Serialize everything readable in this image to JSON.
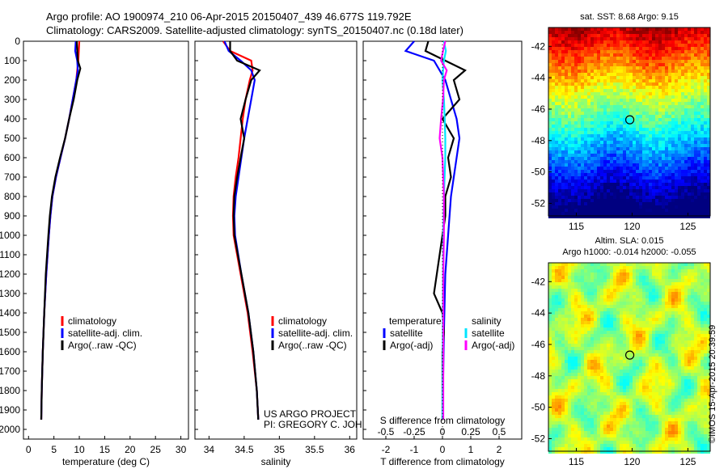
{
  "header": {
    "line1": "Argo profile: AO 1900974_210 06-Apr-2015 20150407_439 46.677S 119.792E",
    "line2": "Climatology: CARS2009. Satellite-adjusted climatology: synTS_20150407.nc (0.18d later)"
  },
  "credit": "©IMOS 15-Apr-2015 20:39:59",
  "depth_ticks": [
    0,
    100,
    200,
    300,
    400,
    500,
    600,
    700,
    800,
    900,
    1000,
    1100,
    1200,
    1300,
    1400,
    1500,
    1600,
    1700,
    1800,
    1900,
    2000
  ],
  "project_note": {
    "line1": "US ARGO PROJECT",
    "line2": "PI: GREGORY C. JOHNSON"
  },
  "colors": {
    "climatology": "#ff0000",
    "satellite": "#0000ff",
    "argo": "#000000",
    "sal_satellite": "#00e5ff",
    "sal_argo": "#ff00ff"
  },
  "chart_data": [
    {
      "type": "line",
      "id": "temperature",
      "xlabel": "temperature (deg C)",
      "xlim": [
        -1,
        31.5
      ],
      "ylim": [
        2050,
        0
      ],
      "xticks": [
        0,
        5,
        10,
        15,
        20,
        25,
        30
      ],
      "legend": [
        "climatology",
        "satellite-adj. clim.",
        "Argo(..raw -QC)"
      ],
      "series": [
        {
          "name": "climatology",
          "color": "#ff0000",
          "depth": [
            0,
            50,
            100,
            150,
            200,
            300,
            400,
            500,
            600,
            700,
            800,
            900,
            1000,
            1200,
            1400,
            1600,
            1800,
            1950
          ],
          "values": [
            10.0,
            9.9,
            9.8,
            9.6,
            9.4,
            8.7,
            8.0,
            7.2,
            6.3,
            5.4,
            4.7,
            4.3,
            4.0,
            3.5,
            3.1,
            2.8,
            2.6,
            2.5
          ]
        },
        {
          "name": "satellite-adj. clim.",
          "color": "#0000ff",
          "depth": [
            0,
            50,
            100,
            150,
            200,
            300,
            400,
            500,
            600,
            700,
            800,
            900,
            1000,
            1200,
            1400,
            1600,
            1800,
            1950
          ],
          "values": [
            9.3,
            9.2,
            9.6,
            9.7,
            9.4,
            8.7,
            8.0,
            7.2,
            6.3,
            5.4,
            4.7,
            4.3,
            4.0,
            3.5,
            3.1,
            2.8,
            2.6,
            2.5
          ]
        },
        {
          "name": "Argo(..raw -QC)",
          "color": "#000000",
          "depth": [
            0,
            50,
            100,
            140,
            200,
            300,
            400,
            500,
            600,
            700,
            800,
            900,
            1000,
            1200,
            1400,
            1600,
            1800,
            1950
          ],
          "values": [
            9.5,
            9.6,
            9.7,
            10.2,
            9.6,
            8.9,
            8.0,
            7.2,
            6.2,
            5.3,
            4.6,
            4.2,
            3.9,
            3.4,
            3.1,
            2.8,
            2.6,
            2.5
          ]
        }
      ]
    },
    {
      "type": "line",
      "id": "salinity",
      "xlabel": "salinity",
      "xlim": [
        33.8,
        36.1
      ],
      "ylim": [
        2050,
        0
      ],
      "xticks": [
        34,
        34.5,
        35,
        35.5,
        36
      ],
      "legend": [
        "climatology",
        "satellite-adj. clim.",
        "Argo(..raw -QC)"
      ],
      "series": [
        {
          "name": "climatology",
          "color": "#ff0000",
          "depth": [
            0,
            50,
            100,
            150,
            200,
            300,
            400,
            500,
            600,
            700,
            800,
            900,
            1000,
            1200,
            1400,
            1600,
            1800,
            1950
          ],
          "values": [
            34.2,
            34.3,
            34.6,
            34.62,
            34.58,
            34.52,
            34.48,
            34.45,
            34.42,
            34.38,
            34.35,
            34.34,
            34.35,
            34.45,
            34.55,
            34.62,
            34.68,
            34.7
          ]
        },
        {
          "name": "satellite-adj. clim.",
          "color": "#0000ff",
          "depth": [
            0,
            50,
            100,
            150,
            200,
            300,
            400,
            500,
            600,
            700,
            800,
            900,
            1000,
            1200,
            1400,
            1600,
            1800,
            1950
          ],
          "values": [
            34.22,
            34.28,
            34.45,
            34.6,
            34.65,
            34.6,
            34.55,
            34.5,
            34.46,
            34.42,
            34.38,
            34.36,
            34.37,
            34.46,
            34.56,
            34.63,
            34.68,
            34.7
          ]
        },
        {
          "name": "Argo(..raw -QC)",
          "color": "#000000",
          "depth": [
            0,
            50,
            100,
            150,
            200,
            300,
            400,
            500,
            600,
            700,
            800,
            900,
            1000,
            1200,
            1400,
            1600,
            1800,
            1950
          ],
          "values": [
            34.3,
            34.3,
            34.4,
            34.72,
            34.6,
            34.52,
            34.45,
            34.5,
            34.45,
            34.4,
            34.36,
            34.35,
            34.36,
            34.46,
            34.56,
            34.63,
            34.68,
            34.7
          ]
        }
      ]
    },
    {
      "type": "line",
      "id": "difference",
      "xlabel": "T difference from climatology",
      "xlabel_top": "S difference from climatology",
      "xlim": [
        -2.8,
        2.8
      ],
      "ylim": [
        2050,
        0
      ],
      "xticks": [
        -2,
        -1,
        0,
        1,
        2
      ],
      "xticks_top": [
        -0.5,
        -0.25,
        0,
        0.25,
        0.5
      ],
      "legend_temperature": {
        "title": "temperature",
        "items": [
          "satellite",
          "Argo(-adj)"
        ]
      },
      "legend_salinity": {
        "title": "salinity",
        "items": [
          "satellite",
          "Argo(-adj)"
        ]
      },
      "series": [
        {
          "name": "T satellite",
          "color": "#0000ff",
          "depth": [
            0,
            50,
            100,
            200,
            300,
            400,
            500,
            600,
            800,
            1000,
            1200,
            1500,
            1950
          ],
          "values": [
            -1.0,
            -1.3,
            -0.3,
            0.1,
            0.3,
            0.5,
            0.6,
            0.5,
            0.3,
            0.2,
            0.1,
            0.05,
            0.0
          ]
        },
        {
          "name": "T Argo(-adj)",
          "color": "#000000",
          "depth": [
            0,
            50,
            100,
            150,
            200,
            300,
            400,
            500,
            600,
            700,
            800,
            900,
            1000,
            1100,
            1200,
            1300,
            1400,
            1500,
            1600,
            1800,
            1950
          ],
          "values": [
            -0.5,
            -0.6,
            0.1,
            0.8,
            0.4,
            0.6,
            0.0,
            0.4,
            0.2,
            0.3,
            0.1,
            0.1,
            0.0,
            -0.1,
            -0.2,
            -0.3,
            0.0,
            0.05,
            0.0,
            0.0,
            0.0
          ]
        },
        {
          "name": "S satellite",
          "color": "#00e5ff",
          "depth": [
            0,
            50,
            100,
            150,
            200,
            300,
            400,
            500,
            600,
            800,
            1000,
            1200,
            1500,
            1950
          ],
          "values": [
            0.05,
            0.12,
            0.05,
            0.02,
            0.0,
            0.05,
            0.08,
            0.1,
            0.1,
            0.05,
            0.03,
            0.02,
            0.01,
            0.0
          ]
        },
        {
          "name": "S Argo(-adj)",
          "color": "#ff00ff",
          "depth": [
            0,
            50,
            100,
            150,
            200,
            300,
            400,
            500,
            600,
            800,
            1000,
            1200,
            1500,
            1950
          ],
          "values": [
            0.1,
            0.02,
            -0.05,
            0.15,
            0.05,
            0.02,
            -0.05,
            -0.1,
            0.0,
            0.05,
            0.05,
            0.03,
            0.03,
            0.03
          ]
        }
      ]
    },
    {
      "type": "heatmap",
      "id": "sst_map",
      "title": "sat. SST: 8.68 Argo: 9.15",
      "xticks": [
        115,
        120,
        125
      ],
      "yticks": [
        -42,
        -44,
        -46,
        -48,
        -50,
        -52
      ],
      "xlim": [
        112.5,
        127
      ],
      "ylim": [
        -52.8,
        -40.8
      ],
      "marker": {
        "lon": 119.792,
        "lat": -46.677
      }
    },
    {
      "type": "heatmap",
      "id": "sla_map",
      "title": "Altim. SLA: 0.015",
      "subtitle": "Argo h1000: -0.014 h2000: -0.055",
      "xticks": [
        115,
        120,
        125
      ],
      "yticks": [
        -42,
        -44,
        -46,
        -48,
        -50,
        -52
      ],
      "xlim": [
        112.5,
        127
      ],
      "ylim": [
        -52.8,
        -40.8
      ],
      "marker": {
        "lon": 119.792,
        "lat": -46.677
      }
    }
  ]
}
